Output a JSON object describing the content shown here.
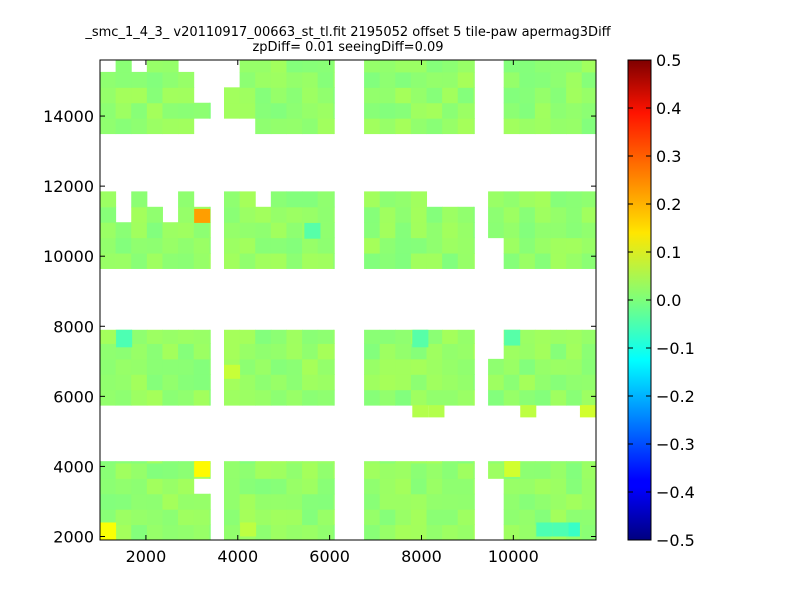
{
  "figure": {
    "title_line1": "_smc_1_4_3_ v20110917_00663_st_tl.fit 2195052 offset 5 tile-paw apermag3Diff",
    "title_line2": "zpDiff= 0.01 seeingDiff=0.09"
  },
  "chart_data": {
    "type": "heatmap",
    "colormap": "jet",
    "xlim": [
      1000,
      11800
    ],
    "ylim": [
      1900,
      15600
    ],
    "xticks": [
      2000,
      4000,
      6000,
      8000,
      10000
    ],
    "yticks": [
      2000,
      4000,
      6000,
      8000,
      10000,
      12000,
      14000
    ],
    "colorbar": {
      "range": [
        -0.5,
        0.5
      ],
      "ticks": [
        "0.5",
        "0.4",
        "0.3",
        "0.2",
        "0.1",
        "0.0",
        "−0.1",
        "−0.2",
        "−0.3",
        "−0.4",
        "−0.5"
      ],
      "tick_values": [
        0.5,
        0.4,
        0.3,
        0.2,
        0.1,
        0.0,
        -0.1,
        -0.2,
        -0.3,
        -0.4,
        -0.5
      ]
    },
    "cell_size": [
      340,
      440
    ],
    "base_value": 0.02,
    "tile_columns": [
      {
        "x": [
          1000,
          3400
        ]
      },
      {
        "x": [
          3700,
          6100
        ]
      },
      {
        "x": [
          6750,
          9150
        ]
      },
      {
        "x": [
          9450,
          11800
        ]
      }
    ],
    "tile_rows": [
      {
        "y": [
          1900,
          4150
        ]
      },
      {
        "y": [
          5750,
          7900
        ]
      },
      {
        "y": [
          9650,
          11850
        ]
      },
      {
        "y": [
          13500,
          15600
        ]
      }
    ],
    "missing_cells": [
      {
        "x": [
          1000,
          2350
        ],
        "y": [
          1900,
          2100
        ]
      },
      {
        "x": [
          1000,
          1350
        ],
        "y": [
          15250,
          15600
        ]
      },
      {
        "x": [
          1700,
          2000
        ],
        "y": [
          15250,
          15600
        ]
      },
      {
        "x": [
          2700,
          3050
        ],
        "y": [
          15250,
          15600
        ]
      },
      {
        "x": [
          3050,
          3400
        ],
        "y": [
          14450,
          15600
        ]
      },
      {
        "x": [
          3050,
          3400
        ],
        "y": [
          13500,
          14100
        ]
      },
      {
        "x": [
          3700,
          4050
        ],
        "y": [
          14800,
          15600
        ]
      },
      {
        "x": [
          3700,
          4400
        ],
        "y": [
          13500,
          13850
        ]
      },
      {
        "x": [
          9450,
          9800
        ],
        "y": [
          13500,
          15600
        ]
      },
      {
        "x": [
          1350,
          1700
        ],
        "y": [
          11000,
          11850
        ]
      },
      {
        "x": [
          2000,
          2350
        ],
        "y": [
          11400,
          11850
        ]
      },
      {
        "x": [
          2350,
          2700
        ],
        "y": [
          11000,
          11850
        ]
      },
      {
        "x": [
          3050,
          3400
        ],
        "y": [
          11400,
          11850
        ]
      },
      {
        "x": [
          4400,
          4750
        ],
        "y": [
          11400,
          11850
        ]
      },
      {
        "x": [
          8150,
          9150
        ],
        "y": [
          11400,
          11850
        ]
      },
      {
        "x": [
          9450,
          9800
        ],
        "y": [
          9650,
          10550
        ]
      },
      {
        "x": [
          3050,
          3400
        ],
        "y": [
          5750,
          5900
        ]
      },
      {
        "x": [
          4050,
          4400
        ],
        "y": [
          5400,
          5750
        ]
      },
      {
        "x": [
          4750,
          6100
        ],
        "y": [
          5400,
          5750
        ]
      },
      {
        "x": [
          6750,
          7450
        ],
        "y": [
          5400,
          5750
        ]
      },
      {
        "x": [
          9450,
          10200
        ],
        "y": [
          5400,
          5750
        ]
      },
      {
        "x": [
          9450,
          9800
        ],
        "y": [
          7100,
          7900
        ]
      },
      {
        "x": [
          3050,
          3400
        ],
        "y": [
          3200,
          3700
        ]
      },
      {
        "x": [
          9450,
          9800
        ],
        "y": [
          1900,
          3700
        ]
      }
    ],
    "colored_cells": [
      {
        "x": [
          1000,
          1350
        ],
        "y": [
          1900,
          2400
        ],
        "v": 0.12
      },
      {
        "x": [
          3050,
          3400
        ],
        "y": [
          3700,
          4150
        ],
        "v": 0.13
      },
      {
        "x": [
          3050,
          3400
        ],
        "y": [
          10950,
          11350
        ],
        "v": 0.22
      },
      {
        "x": [
          9800,
          10150
        ],
        "y": [
          3700,
          4150
        ],
        "v": 0.08
      },
      {
        "x": [
          3700,
          4050
        ],
        "y": [
          6500,
          6900
        ],
        "v": 0.07
      },
      {
        "x": [
          11450,
          11800
        ],
        "y": [
          5400,
          5750
        ],
        "v": 0.08
      },
      {
        "x": [
          10150,
          10500
        ],
        "y": [
          5400,
          5750
        ],
        "v": 0.06
      },
      {
        "x": [
          7800,
          8150
        ],
        "y": [
          5400,
          5750
        ],
        "v": 0.05
      },
      {
        "x": [
          8150,
          8500
        ],
        "y": [
          5400,
          5750
        ],
        "v": 0.05
      },
      {
        "x": [
          4050,
          4400
        ],
        "y": [
          2000,
          2400
        ],
        "v": 0.06
      },
      {
        "x": [
          10500,
          10850
        ],
        "y": [
          2000,
          2400
        ],
        "v": -0.05
      },
      {
        "x": [
          10850,
          11200
        ],
        "y": [
          2000,
          2400
        ],
        "v": -0.05
      },
      {
        "x": [
          11200,
          11450
        ],
        "y": [
          2000,
          2400
        ],
        "v": -0.07
      },
      {
        "x": [
          1350,
          1700
        ],
        "y": [
          7400,
          7900
        ],
        "v": -0.05
      },
      {
        "x": [
          7800,
          8150
        ],
        "y": [
          7400,
          7900
        ],
        "v": -0.04
      },
      {
        "x": [
          5450,
          5800
        ],
        "y": [
          10500,
          10950
        ],
        "v": -0.04
      },
      {
        "x": [
          9800,
          10150
        ],
        "y": [
          7450,
          7900
        ],
        "v": -0.04
      }
    ]
  }
}
